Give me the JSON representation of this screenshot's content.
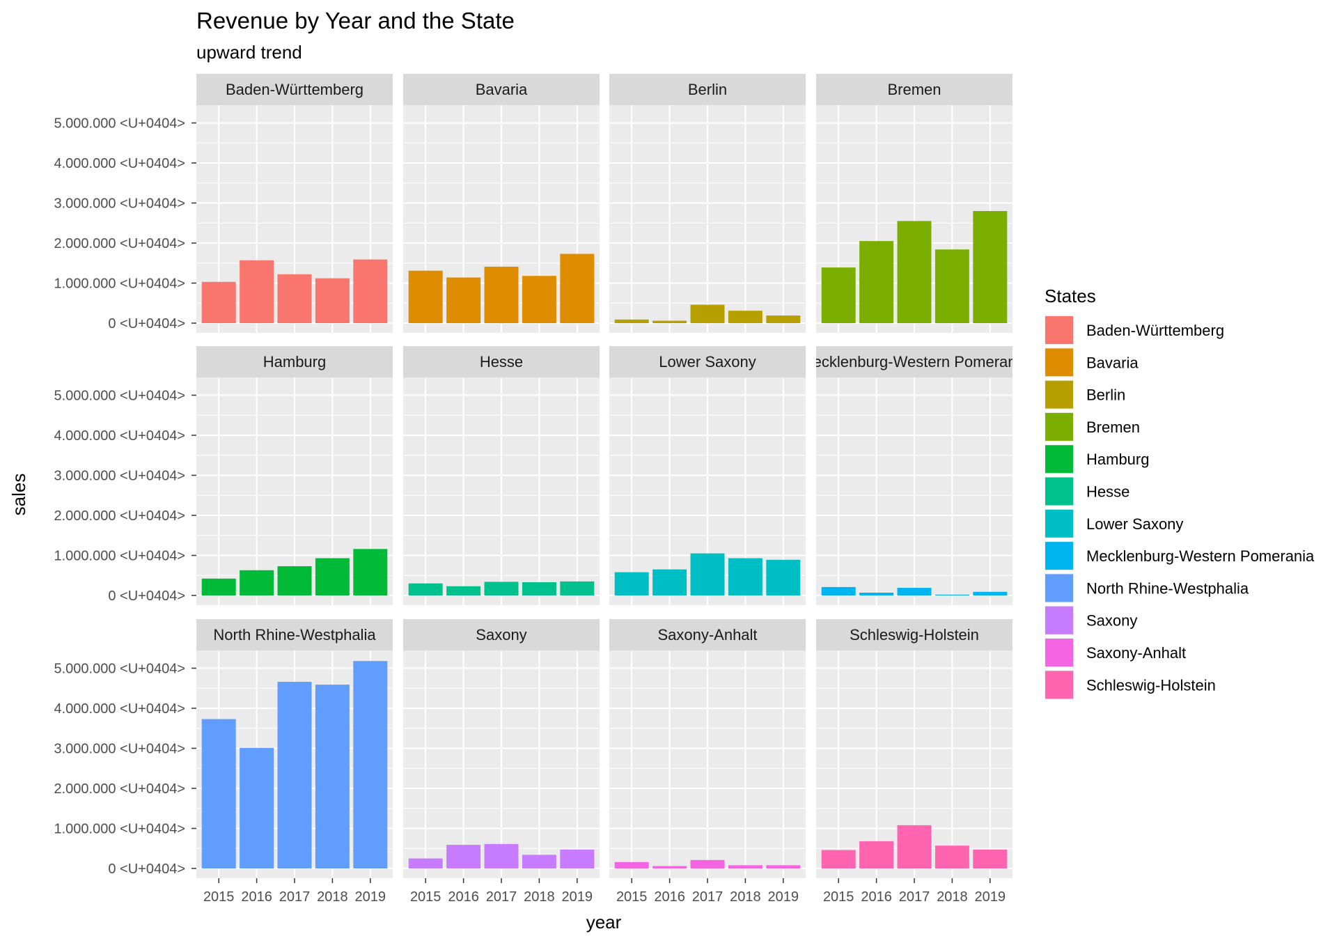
{
  "chart_data": {
    "type": "bar",
    "title": "Revenue by Year and  the State",
    "subtitle": "upward trend",
    "xlabel": "year",
    "ylabel": "sales",
    "ylim": [
      0,
      5200000
    ],
    "y_ticks": [
      0,
      1000000,
      2000000,
      3000000,
      4000000,
      5000000
    ],
    "y_tick_labels": [
      "0 <U+0404>",
      "1.000.000 <U+0404>",
      "2.000.000 <U+0404>",
      "3.000.000 <U+0404>",
      "4.000.000 <U+0404>",
      "5.000.000 <U+0404>"
    ],
    "categories": [
      "2015",
      "2016",
      "2017",
      "2018",
      "2019"
    ],
    "grid": true,
    "legend_title": "States",
    "legend_position": "right",
    "facets": [
      {
        "name": "Baden-Württemberg",
        "color": "#F8766D",
        "values": [
          1030000,
          1570000,
          1220000,
          1120000,
          1590000
        ]
      },
      {
        "name": "Bavaria",
        "color": "#DE8C00",
        "values": [
          1310000,
          1140000,
          1410000,
          1180000,
          1730000
        ]
      },
      {
        "name": "Berlin",
        "color": "#B79F00",
        "values": [
          90000,
          60000,
          460000,
          310000,
          190000
        ]
      },
      {
        "name": "Bremen",
        "color": "#7CAE00",
        "values": [
          1390000,
          2050000,
          2550000,
          1840000,
          2800000
        ]
      },
      {
        "name": "Hamburg",
        "color": "#00BA38",
        "values": [
          420000,
          630000,
          730000,
          930000,
          1160000
        ]
      },
      {
        "name": "Hesse",
        "color": "#00C08B",
        "values": [
          300000,
          230000,
          340000,
          330000,
          350000
        ]
      },
      {
        "name": "Lower Saxony",
        "color": "#00BFC4",
        "values": [
          580000,
          650000,
          1050000,
          930000,
          890000
        ]
      },
      {
        "name": "Mecklenburg-Western Pomerania",
        "color": "#00B4F0",
        "values": [
          210000,
          70000,
          190000,
          20000,
          90000
        ]
      },
      {
        "name": "North Rhine-Westphalia",
        "color": "#619CFF",
        "values": [
          3730000,
          3010000,
          4660000,
          4590000,
          5180000
        ]
      },
      {
        "name": "Saxony",
        "color": "#C77CFF",
        "values": [
          250000,
          590000,
          610000,
          340000,
          470000
        ]
      },
      {
        "name": "Saxony-Anhalt",
        "color": "#F564E3",
        "values": [
          160000,
          60000,
          210000,
          80000,
          80000
        ]
      },
      {
        "name": "Schleswig-Holstein",
        "color": "#FF64B0",
        "values": [
          460000,
          680000,
          1080000,
          570000,
          470000
        ]
      }
    ]
  }
}
